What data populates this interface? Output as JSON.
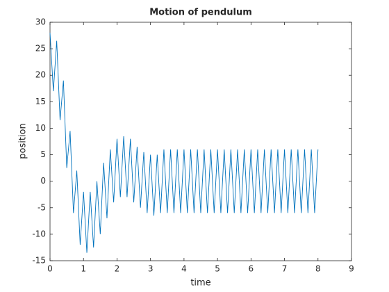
{
  "chart_data": {
    "type": "line",
    "title": "Motion of pendulum",
    "x_label": "time",
    "y_label": "position",
    "x": [
      0,
      0.1,
      0.2,
      0.3,
      0.4,
      0.5,
      0.6,
      0.7,
      0.8,
      0.9,
      1,
      1.1,
      1.2,
      1.3,
      1.4,
      1.5,
      1.6,
      1.7,
      1.8,
      1.9,
      2,
      2.1,
      2.2,
      2.3,
      2.4,
      2.5,
      2.6,
      2.7,
      2.8,
      2.9,
      3,
      3.1,
      3.2,
      3.3,
      3.4,
      3.5,
      3.6,
      3.7,
      3.8,
      3.9,
      4,
      4.1,
      4.2,
      4.3,
      4.4,
      4.5,
      4.6,
      4.7,
      4.8,
      4.9,
      5,
      5.1,
      5.2,
      5.3,
      5.4,
      5.5,
      5.6,
      5.7,
      5.8,
      5.9,
      6,
      6.1,
      6.2,
      6.3,
      6.4,
      6.5,
      6.6,
      6.7,
      6.8,
      6.9,
      7,
      7.1,
      7.2,
      7.3,
      7.4,
      7.5,
      7.6,
      7.7,
      7.8,
      7.9,
      8
    ],
    "series": [
      {
        "color": "#0072bd",
        "values": [
          28,
          17,
          26.5,
          11.5,
          19,
          2.5,
          9.5,
          -6,
          2,
          -12,
          -2,
          -13.5,
          -2,
          -12.5,
          0,
          -10,
          3.5,
          -7,
          6,
          -4,
          8,
          -3,
          8.5,
          -3,
          8,
          -4,
          6.5,
          -5,
          5.5,
          -6,
          5,
          -6.5,
          5,
          -6,
          6,
          -6,
          6,
          -6,
          6,
          -6,
          6,
          -6,
          6,
          -6,
          6,
          -6,
          6,
          -6,
          6,
          -6,
          6,
          -6,
          6,
          -6,
          6,
          -6,
          6,
          -6,
          6,
          -6,
          6,
          -6,
          6,
          -6,
          6,
          -6,
          6,
          -6,
          6,
          -6,
          6,
          -6,
          6,
          -6,
          6,
          -6,
          6,
          -6,
          6,
          -6,
          6
        ]
      }
    ],
    "xlim": [
      0,
      9
    ],
    "xticks": [
      0,
      1,
      2,
      3,
      4,
      5,
      6,
      7,
      8,
      9
    ],
    "ylim": [
      -15,
      30
    ],
    "yticks": [
      -15,
      -10,
      -5,
      0,
      5,
      10,
      15,
      20,
      25,
      30
    ],
    "grid": false
  }
}
